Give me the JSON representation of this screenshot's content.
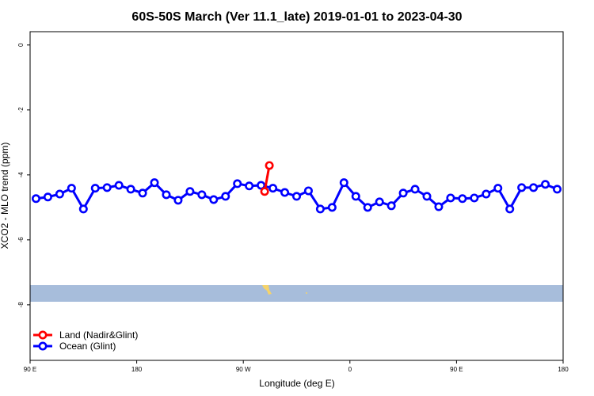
{
  "chart_data": {
    "type": "line",
    "title": "60S-50S March (Ver 11.1_late)   2019-01-01 to 2023-04-30",
    "x_label": "Longitude (deg E)",
    "y_label": "XCO2 - MLO trend (ppm)",
    "xlim": [
      90,
      540
    ],
    "ylim": [
      -9.71,
      0.41
    ],
    "xticks": [
      {
        "value": 90,
        "label": "90 E"
      },
      {
        "value": 180,
        "label": "180"
      },
      {
        "value": 270,
        "label": "90 W"
      },
      {
        "value": 360,
        "label": "0"
      },
      {
        "value": 450,
        "label": "90 E"
      },
      {
        "value": 540,
        "label": "180"
      }
    ],
    "yticks": [
      0,
      -2,
      -4,
      -6,
      -8
    ],
    "legend_position": "bottom-left",
    "series": [
      {
        "name": "Land (Nadir&Glint)",
        "color": "#ff0000",
        "x": [
          288,
          292
        ],
        "values": [
          -4.51,
          -3.71
        ]
      },
      {
        "name": "Ocean (Glint)",
        "color": "#0000ff",
        "x": [
          95,
          105,
          115,
          125,
          135,
          145,
          155,
          165,
          175,
          185,
          195,
          205,
          215,
          225,
          235,
          245,
          255,
          265,
          275,
          285,
          295,
          305,
          315,
          325,
          335,
          345,
          355,
          365,
          375,
          385,
          395,
          405,
          415,
          425,
          435,
          445,
          455,
          465,
          475,
          485,
          495,
          505,
          515,
          525,
          535
        ],
        "values": [
          -4.73,
          -4.68,
          -4.59,
          -4.41,
          -5.05,
          -4.41,
          -4.39,
          -4.32,
          -4.44,
          -4.56,
          -4.24,
          -4.61,
          -4.78,
          -4.51,
          -4.61,
          -4.76,
          -4.66,
          -4.27,
          -4.34,
          -4.32,
          -4.41,
          -4.54,
          -4.66,
          -4.49,
          -5.05,
          -5.0,
          -4.24,
          -4.66,
          -5.0,
          -4.83,
          -4.95,
          -4.56,
          -4.44,
          -4.66,
          -4.98,
          -4.71,
          -4.73,
          -4.71,
          -4.59,
          -4.41,
          -5.05,
          -4.39,
          -4.39,
          -4.29,
          -4.44
        ]
      }
    ]
  }
}
